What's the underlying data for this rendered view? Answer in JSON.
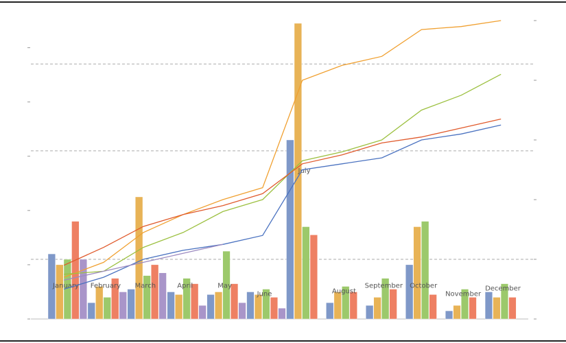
{
  "chart_data": {
    "type": "bar",
    "title": "",
    "xlabel": "",
    "ylabel": "",
    "y2label": "",
    "grid": "y-dashed",
    "months": [
      {
        "label": "January",
        "bars": [
          24,
          20,
          22,
          36,
          22
        ]
      },
      {
        "label": "February",
        "bars": [
          6,
          12,
          8,
          15,
          10
        ]
      },
      {
        "label": "March",
        "bars": [
          11,
          45,
          16,
          20,
          17
        ]
      },
      {
        "label": "April",
        "bars": [
          10,
          9,
          15,
          13,
          5
        ]
      },
      {
        "label": "May",
        "bars": [
          9,
          10,
          25,
          13,
          6
        ]
      },
      {
        "label": "June",
        "bars": [
          10,
          9,
          11,
          8,
          4
        ]
      },
      {
        "label": "July",
        "bars": [
          66,
          109,
          34,
          31,
          0
        ]
      },
      {
        "label": "August",
        "bars": [
          6,
          10,
          12,
          10,
          0
        ]
      },
      {
        "label": "September",
        "bars": [
          5,
          8,
          15,
          11,
          0
        ]
      },
      {
        "label": "October",
        "bars": [
          20,
          34,
          36,
          9,
          0
        ]
      },
      {
        "label": "November",
        "bars": [
          3,
          5,
          11,
          8,
          0
        ]
      },
      {
        "label": "December",
        "bars": [
          10,
          8,
          13,
          8,
          0
        ]
      }
    ],
    "ylim": [
      0,
      110
    ],
    "y2lim": [
      0,
      100
    ],
    "series_colors": [
      "#7f98c8",
      "#e8b356",
      "#9cc96b",
      "#ee8063",
      "#a995c9"
    ],
    "lines": [
      {
        "color": "#f0a030",
        "values": [
          14,
          19,
          29,
          35,
          40,
          44,
          80,
          85,
          88,
          97,
          98,
          100
        ]
      },
      {
        "color": "#9cc040",
        "values": [
          15,
          16,
          24,
          29,
          36,
          40,
          53,
          56,
          60,
          70,
          75,
          82
        ]
      },
      {
        "color": "#e05a2c",
        "values": [
          18,
          24,
          31,
          35,
          38,
          42,
          52,
          55,
          59,
          61,
          64,
          67
        ]
      },
      {
        "color": "#4a72c0",
        "values": [
          10,
          14,
          20,
          23,
          25,
          28,
          50,
          52,
          54,
          60,
          62,
          65
        ]
      },
      {
        "color": "#9c8ac0",
        "values": [
          13,
          16,
          19,
          22,
          25
        ]
      }
    ]
  }
}
